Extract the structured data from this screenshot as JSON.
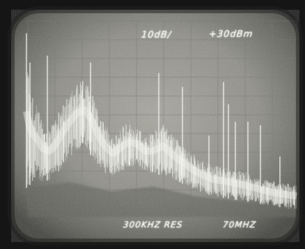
{
  "screen_text": {
    "ref_scale": "10dB/",
    "ref_level": "+30dBm",
    "resolution": "300KHZ RES",
    "span": "70MHZ"
  },
  "colors": {
    "trace": "#f4f4f0",
    "screen": "#8e8e86",
    "bezel": "#151515"
  }
}
